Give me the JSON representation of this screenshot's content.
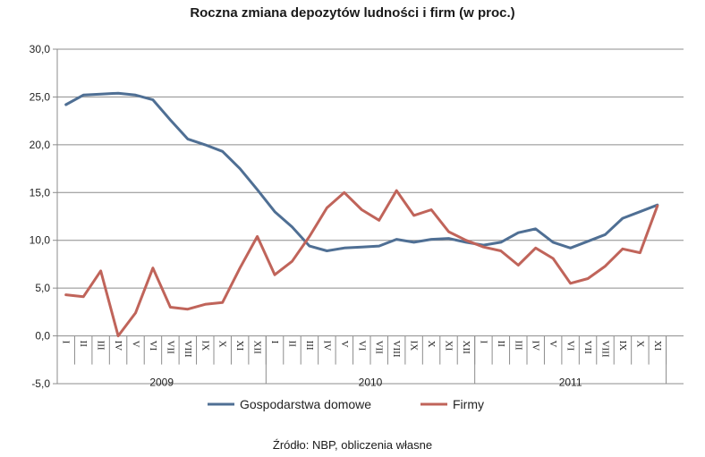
{
  "chart_data": {
    "type": "line",
    "title": "Roczna zmiana depozytów ludności i firm (w proc.)",
    "source": "Źródło: NBP, obliczenia własne",
    "ylim": [
      -5,
      30
    ],
    "yticks": [
      "30,0",
      "25,0",
      "20,0",
      "15,0",
      "10,0",
      "5,0",
      "0,0",
      "-5,0"
    ],
    "ytick_values": [
      30,
      25,
      20,
      15,
      10,
      5,
      0,
      -5
    ],
    "grid": "horizontal",
    "legend_position": "bottom",
    "months": [
      "I",
      "II",
      "III",
      "IV",
      "V",
      "VI",
      "VII",
      "VIII",
      "IX",
      "X",
      "XI",
      "XII",
      "I",
      "II",
      "III",
      "IV",
      "V",
      "VI",
      "VII",
      "VIII",
      "IX",
      "X",
      "XI",
      "XII",
      "I",
      "II",
      "III",
      "IV",
      "V",
      "VI",
      "VII",
      "VIII",
      "IX",
      "X",
      "XI"
    ],
    "years": [
      {
        "label": "2009",
        "span": 12
      },
      {
        "label": "2010",
        "span": 12
      },
      {
        "label": "2011",
        "span": 11
      }
    ],
    "series": [
      {
        "name": "Gospodarstwa domowe",
        "color": "#4f6f94",
        "values": [
          24.2,
          25.2,
          25.3,
          25.4,
          25.2,
          24.7,
          22.6,
          20.6,
          20.0,
          19.3,
          17.5,
          15.3,
          13.0,
          11.4,
          9.4,
          8.9,
          9.2,
          9.3,
          9.4,
          10.1,
          9.8,
          10.1,
          10.2,
          9.8,
          9.5,
          9.8,
          10.8,
          11.2,
          9.8,
          9.2,
          9.9,
          10.6,
          12.3,
          13.0,
          13.7
        ]
      },
      {
        "name": "Firmy",
        "color": "#c0645a",
        "values": [
          4.3,
          4.1,
          6.8,
          0.0,
          2.4,
          7.1,
          3.0,
          2.8,
          3.3,
          3.5,
          7.1,
          10.4,
          6.4,
          7.8,
          10.4,
          13.4,
          15.0,
          13.2,
          12.1,
          15.2,
          12.6,
          13.2,
          10.9,
          10.0,
          9.3,
          8.9,
          7.4,
          9.2,
          8.1,
          5.5,
          6.0,
          7.3,
          9.1,
          8.7,
          13.6
        ]
      }
    ]
  }
}
